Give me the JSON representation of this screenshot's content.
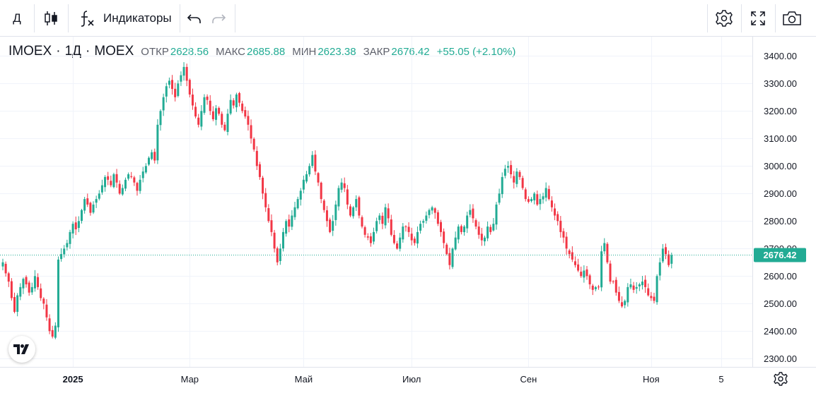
{
  "toolbar": {
    "interval_label": "Д",
    "indicators_label": "Индикаторы",
    "icons": [
      "candles-icon",
      "fx-icon",
      "undo-icon",
      "redo-icon",
      "settings-icon",
      "fullscreen-icon",
      "camera-icon"
    ]
  },
  "legend": {
    "symbol": "IMOEX",
    "interval": "1Д",
    "exchange": "MOEX",
    "sep": "·",
    "open_label": "ОТКР",
    "open": "2628.56",
    "high_label": "МАКС",
    "high": "2685.88",
    "low_label": "МИН",
    "low": "2623.38",
    "close_label": "ЗАКР",
    "close": "2676.42",
    "change": "+55.05 (+2.10%)"
  },
  "colors": {
    "up": "#22ab94",
    "down": "#f23645",
    "grid": "#f0f3fa",
    "price_line": "#22ab94"
  },
  "chart_data": {
    "type": "candlestick",
    "title": "",
    "ylim": [
      2270,
      3470
    ],
    "y_ticks": [
      2300,
      2400,
      2500,
      2600,
      2700,
      2800,
      2900,
      3000,
      3100,
      3200,
      3300,
      3400
    ],
    "y_tick_labels": [
      "2300.00",
      "2400.00",
      "2500.00",
      "2600.00",
      "2700.00",
      "2800.00",
      "2900.00",
      "3000.00",
      "3100.00",
      "3200.00",
      "3300.00",
      "3400.00"
    ],
    "x_labels": [
      {
        "label": "2025",
        "index": 24,
        "bold": true
      },
      {
        "label": "Мар",
        "index": 64,
        "bold": false
      },
      {
        "label": "Май",
        "index": 103,
        "bold": false
      },
      {
        "label": "Июл",
        "index": 140,
        "bold": false
      },
      {
        "label": "Сен",
        "index": 180,
        "bold": false
      },
      {
        "label": "Ноя",
        "index": 222,
        "bold": false
      },
      {
        "label": "5",
        "index": 246,
        "bold": false
      }
    ],
    "last_price": 2676.42,
    "last_price_label": "2676.42",
    "candles_close": [
      2650,
      2610,
      2580,
      2520,
      2470,
      2530,
      2560,
      2590,
      2570,
      2540,
      2560,
      2600,
      2560,
      2520,
      2500,
      2450,
      2400,
      2380,
      2420,
      2660,
      2680,
      2700,
      2720,
      2760,
      2790,
      2770,
      2800,
      2840,
      2880,
      2860,
      2830,
      2860,
      2880,
      2900,
      2930,
      2960,
      2950,
      2930,
      2970,
      2940,
      2900,
      2920,
      2950,
      2970,
      2960,
      2940,
      2910,
      2950,
      2980,
      3000,
      3030,
      3050,
      3020,
      3150,
      3200,
      3250,
      3290,
      3310,
      3280,
      3250,
      3300,
      3330,
      3360,
      3310,
      3260,
      3220,
      3180,
      3150,
      3200,
      3250,
      3240,
      3200,
      3170,
      3210,
      3190,
      3150,
      3130,
      3190,
      3240,
      3220,
      3260,
      3230,
      3200,
      3180,
      3150,
      3100,
      3060,
      3000,
      2960,
      2900,
      2850,
      2800,
      2760,
      2700,
      2650,
      2700,
      2760,
      2800,
      2780,
      2820,
      2850,
      2880,
      2910,
      2950,
      2970,
      3000,
      3040,
      2980,
      2940,
      2880,
      2840,
      2800,
      2760,
      2800,
      2860,
      2920,
      2940,
      2920,
      2860,
      2820,
      2850,
      2880,
      2820,
      2780,
      2750,
      2740,
      2720,
      2760,
      2800,
      2820,
      2790,
      2850,
      2810,
      2750,
      2720,
      2700,
      2740,
      2780,
      2780,
      2760,
      2730,
      2720,
      2760,
      2790,
      2800,
      2820,
      2840,
      2850,
      2830,
      2790,
      2760,
      2720,
      2680,
      2640,
      2700,
      2740,
      2780,
      2760,
      2780,
      2820,
      2840,
      2810,
      2780,
      2750,
      2730,
      2740,
      2780,
      2760,
      2790,
      2860,
      2900,
      2960,
      2990,
      3000,
      2970,
      2940,
      2980,
      2960,
      2920,
      2880,
      2870,
      2880,
      2900,
      2860,
      2880,
      2890,
      2920,
      2880,
      2850,
      2820,
      2800,
      2760,
      2740,
      2700,
      2680,
      2660,
      2640,
      2620,
      2600,
      2620,
      2600,
      2570,
      2550,
      2560,
      2560,
      2690,
      2720,
      2650,
      2580,
      2580,
      2540,
      2510,
      2490,
      2510,
      2560,
      2570,
      2550,
      2560,
      2570,
      2580,
      2560,
      2530,
      2520,
      2510,
      2600,
      2650,
      2700,
      2680,
      2640,
      2676
    ]
  }
}
